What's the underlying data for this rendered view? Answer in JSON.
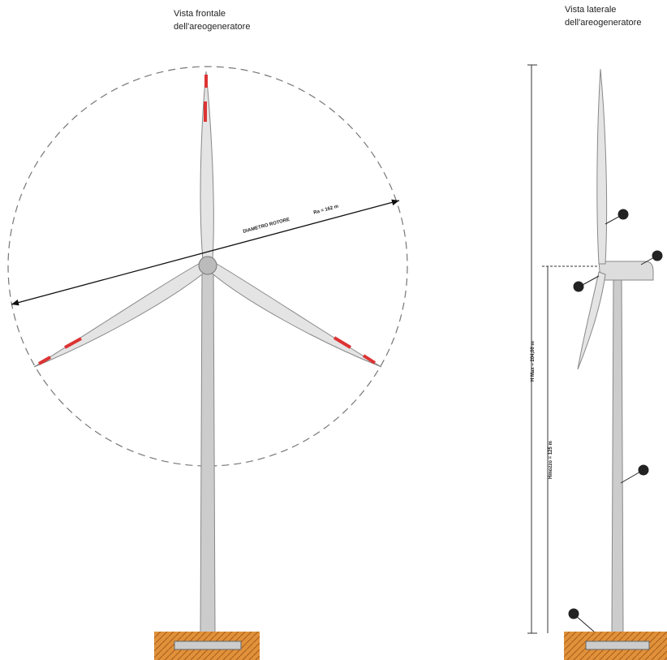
{
  "front_view": {
    "title": [
      "Vista frontale",
      "dell'areogeneratore"
    ],
    "diameter_label": "DIAMETRO ROTORE",
    "diameter_value": "Ra = 162 m"
  },
  "side_view": {
    "title": [
      "Vista laterale",
      "dell'areogeneratore"
    ],
    "height_max_label": "H Max = 204,00 m",
    "hub_height_label": "Hmozzo = 125 m"
  }
}
